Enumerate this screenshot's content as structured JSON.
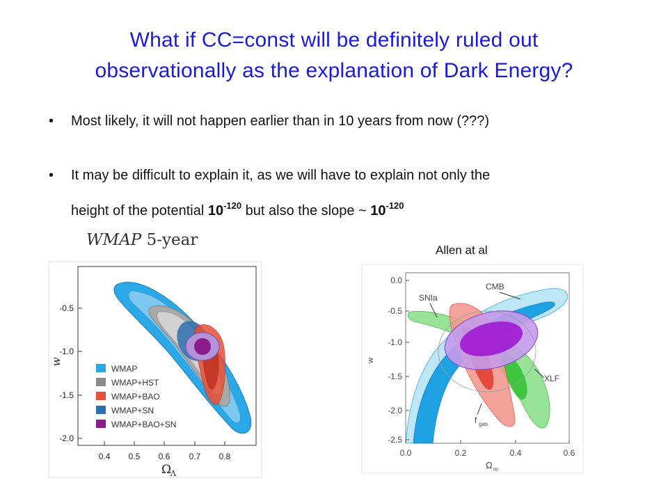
{
  "slide": {
    "title_line1": "What if CC=const will be definitely ruled out",
    "title_line2": "observationally as the explanation of Dark Energy?",
    "bullet1": "Most likely, it will not happen earlier than in 10 years from now (???)",
    "bullet2_line1": "It may be difficult to explain it, as we will have to explain not only the",
    "bullet2_pre": "height of the potential ",
    "bullet2_val1": "10",
    "bullet2_exp1": "-120",
    "bullet2_mid": " but also the slope ~ ",
    "bullet2_val2": "10",
    "bullet2_exp2": "-120",
    "bullet_symbol": "•"
  },
  "left_figure": {
    "caption_italic": "WMAP",
    "caption_rest": " 5-year",
    "ylabel": "w",
    "xlabel": "Ω",
    "xlabel_sub": "Λ",
    "yticks": [
      "-0.5",
      "-1.0",
      "-1.5",
      "-2.0"
    ],
    "xticks": [
      "0.4",
      "0.5",
      "0.6",
      "0.7",
      "0.8"
    ],
    "legend": [
      {
        "name": "WMAP",
        "color": "#2aa8e8"
      },
      {
        "name": "WMAP+HST",
        "color": "#8a8a8a"
      },
      {
        "name": "WMAP+BAO",
        "color": "#e8503a"
      },
      {
        "name": "WMAP+SN",
        "color": "#2f6fb0"
      },
      {
        "name": "WMAP+BAO+SN",
        "color": "#8b1a8b"
      }
    ]
  },
  "right_figure": {
    "caption": "Allen at al",
    "ylabel": "w",
    "xlabel": "Ω",
    "xlabel_sub": "m",
    "yticks": [
      "0.0",
      "-0.5",
      "-1.0",
      "-1.5",
      "-2.0",
      "-2.5"
    ],
    "xticks": [
      "0.0",
      "0.2",
      "0.4",
      "0.6"
    ],
    "labels": {
      "snia": "SNIa",
      "cmb": "CMB",
      "xlf": "XLF",
      "fgas": "f",
      "fgas_sub": "gas"
    }
  }
}
